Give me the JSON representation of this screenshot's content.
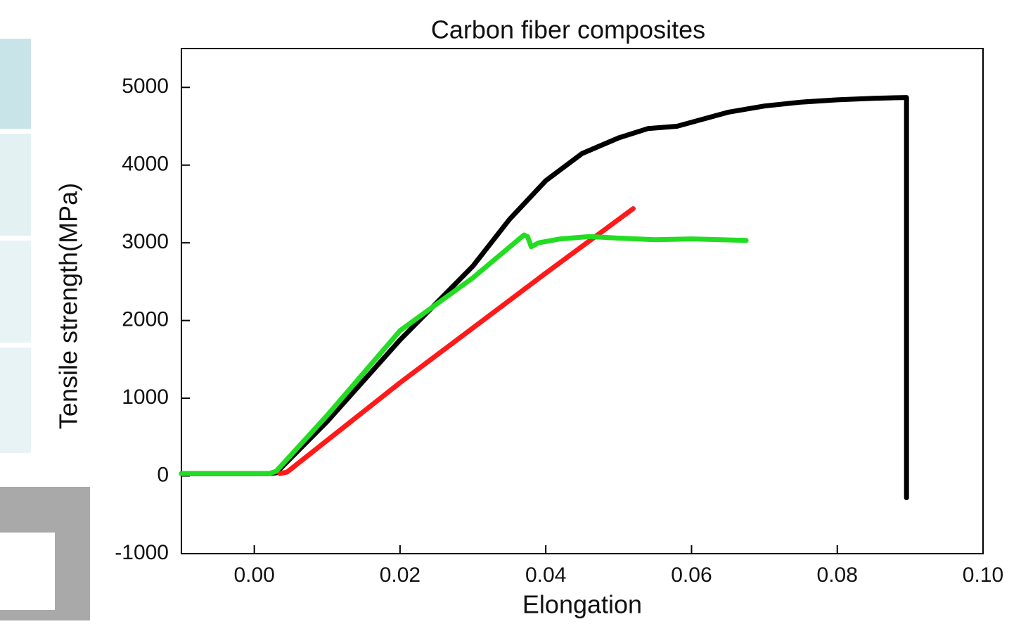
{
  "chart_data": {
    "type": "line",
    "title": "Carbon fiber composites",
    "x_label": "Elongation",
    "y_label": "Tensile strength(MPa)",
    "xlim": [
      -0.01,
      0.1
    ],
    "ylim": [
      -1000,
      5500
    ],
    "xticks": [
      {
        "value": 0,
        "label": "0.00"
      },
      {
        "value": 0.02,
        "label": "0.02"
      },
      {
        "value": 0.04,
        "label": "0.04"
      },
      {
        "value": 0.06,
        "label": "0.06"
      },
      {
        "value": 0.08,
        "label": "0.08"
      },
      {
        "value": 0.1,
        "label": "0.10"
      }
    ],
    "yticks": [
      -1000,
      0,
      1000,
      2000,
      3000,
      4000,
      5000
    ],
    "series": [
      {
        "color": "#000000",
        "x": [
          -0.01,
          0.002,
          0.003,
          0.01,
          0.02,
          0.03,
          0.035,
          0.04,
          0.045,
          0.05,
          0.054,
          0.058,
          0.065,
          0.07,
          0.075,
          0.08,
          0.085,
          0.0895,
          0.0895
        ],
        "values": [
          30,
          30,
          40,
          700,
          1750,
          2700,
          3300,
          3800,
          4150,
          4350,
          4470,
          4500,
          4680,
          4760,
          4810,
          4840,
          4860,
          4870,
          -280
        ]
      },
      {
        "color": "#ff1a1a",
        "x": [
          0.0035,
          0.0045,
          0.02,
          0.04,
          0.052
        ],
        "values": [
          30,
          50,
          1200,
          2610,
          3440
        ]
      },
      {
        "color": "#22dd22",
        "x": [
          -0.01,
          0.002,
          0.003,
          0.01,
          0.02,
          0.03,
          0.037,
          0.0375,
          0.038,
          0.039,
          0.042,
          0.046,
          0.05,
          0.055,
          0.06,
          0.0675
        ],
        "values": [
          30,
          30,
          60,
          780,
          1870,
          2550,
          3100,
          3080,
          2950,
          3000,
          3050,
          3080,
          3060,
          3040,
          3050,
          3030
        ]
      }
    ]
  }
}
